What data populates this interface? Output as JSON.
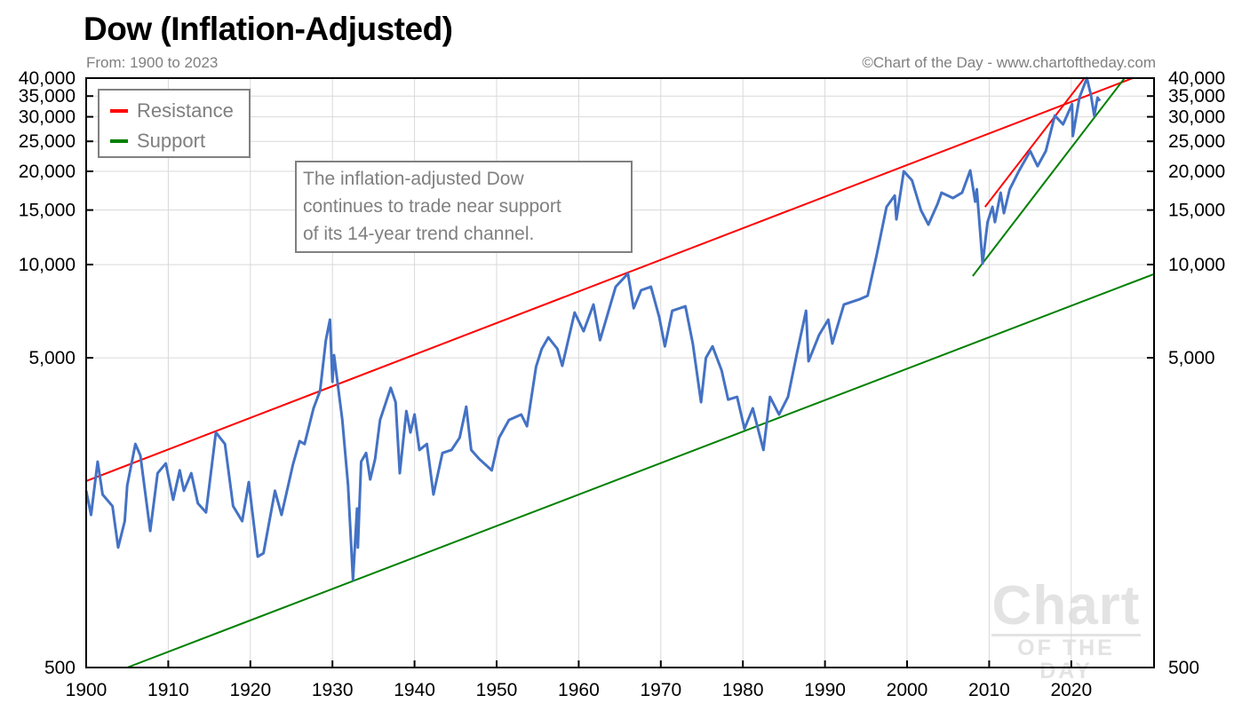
{
  "header": {
    "title": "Dow (Inflation-Adjusted)",
    "subtitle": "From: 1900 to 2023",
    "credit": "©Chart of the Day - www.chartoftheday.com"
  },
  "annotation": {
    "lines": [
      "The inflation-adjusted Dow",
      "continues to trade near support",
      "of its 14-year trend channel."
    ]
  },
  "watermark": {
    "line1": "Chart",
    "line2": "OF THE DAY"
  },
  "colors": {
    "series": "#4472c4",
    "resistance": "#ff0000",
    "support": "#008000",
    "grid": "#d9d9d9",
    "text_muted": "#7f7f7f"
  },
  "chart_data": {
    "type": "line",
    "title": "Dow (Inflation-Adjusted)",
    "subtitle": "From: 1900 to 2023",
    "xlabel": "",
    "ylabel": "",
    "xlim": [
      1900,
      2030
    ],
    "ylim": [
      500,
      40000
    ],
    "y_scale": "log",
    "grid": true,
    "legend_position": "top-left",
    "x_ticks": [
      1900,
      1910,
      1920,
      1930,
      1940,
      1950,
      1960,
      1970,
      1980,
      1990,
      2000,
      2010,
      2020
    ],
    "y_ticks": [
      500,
      5000,
      10000,
      15000,
      20000,
      25000,
      30000,
      35000,
      40000
    ],
    "y_tick_labels": [
      "500",
      "5,000",
      "10,000",
      "15,000",
      "20,000",
      "25,000",
      "30,000",
      "35,000",
      "40,000"
    ],
    "legend": [
      {
        "name": "Resistance",
        "color": "#ff0000"
      },
      {
        "name": "Support",
        "color": "#008000"
      }
    ],
    "series": [
      {
        "color": "#4472c4",
        "points": [
          [
            1900.0,
            1860
          ],
          [
            1900.6,
            1555
          ],
          [
            1901.4,
            2310
          ],
          [
            1902.0,
            1810
          ],
          [
            1903.2,
            1660
          ],
          [
            1903.9,
            1220
          ],
          [
            1904.7,
            1485
          ],
          [
            1905.0,
            1935
          ],
          [
            1906.0,
            2635
          ],
          [
            1906.6,
            2420
          ],
          [
            1907.8,
            1380
          ],
          [
            1908.7,
            2120
          ],
          [
            1909.7,
            2280
          ],
          [
            1910.6,
            1740
          ],
          [
            1911.4,
            2165
          ],
          [
            1911.9,
            1860
          ],
          [
            1912.8,
            2120
          ],
          [
            1913.6,
            1695
          ],
          [
            1914.6,
            1585
          ],
          [
            1915.8,
            2870
          ],
          [
            1916.9,
            2635
          ],
          [
            1917.9,
            1660
          ],
          [
            1919.0,
            1485
          ],
          [
            1919.8,
            1985
          ],
          [
            1920.9,
            1140
          ],
          [
            1921.6,
            1170
          ],
          [
            1923.0,
            1860
          ],
          [
            1923.8,
            1555
          ],
          [
            1925.2,
            2265
          ],
          [
            1926.0,
            2690
          ],
          [
            1926.6,
            2635
          ],
          [
            1927.7,
            3435
          ],
          [
            1928.5,
            3915
          ],
          [
            1929.2,
            5700
          ],
          [
            1929.7,
            6640
          ],
          [
            1930.0,
            4185
          ],
          [
            1930.2,
            5100
          ],
          [
            1931.2,
            3150
          ],
          [
            1931.9,
            1935
          ],
          [
            1932.5,
            960
          ],
          [
            1933.0,
            1630
          ],
          [
            1933.1,
            1220
          ],
          [
            1933.5,
            2310
          ],
          [
            1934.1,
            2465
          ],
          [
            1934.6,
            2025
          ],
          [
            1935.2,
            2355
          ],
          [
            1935.8,
            3150
          ],
          [
            1937.1,
            4000
          ],
          [
            1937.7,
            3595
          ],
          [
            1938.2,
            2120
          ],
          [
            1939.0,
            3365
          ],
          [
            1939.5,
            2870
          ],
          [
            1940.0,
            3280
          ],
          [
            1940.6,
            2520
          ],
          [
            1941.5,
            2635
          ],
          [
            1942.3,
            1810
          ],
          [
            1943.4,
            2465
          ],
          [
            1944.5,
            2520
          ],
          [
            1945.5,
            2760
          ],
          [
            1946.3,
            3475
          ],
          [
            1946.9,
            2520
          ],
          [
            1947.9,
            2355
          ],
          [
            1949.4,
            2165
          ],
          [
            1950.3,
            2760
          ],
          [
            1951.5,
            3150
          ],
          [
            1953.0,
            3280
          ],
          [
            1953.7,
            3005
          ],
          [
            1954.8,
            4680
          ],
          [
            1955.5,
            5345
          ],
          [
            1956.3,
            5820
          ],
          [
            1957.4,
            5345
          ],
          [
            1958.0,
            4710
          ],
          [
            1959.5,
            7000
          ],
          [
            1960.6,
            6095
          ],
          [
            1961.8,
            7430
          ],
          [
            1962.6,
            5700
          ],
          [
            1964.5,
            8475
          ],
          [
            1966.0,
            9355
          ],
          [
            1966.7,
            7230
          ],
          [
            1967.6,
            8260
          ],
          [
            1968.8,
            8475
          ],
          [
            1969.8,
            6775
          ],
          [
            1970.5,
            5445
          ],
          [
            1971.4,
            7095
          ],
          [
            1973.0,
            7330
          ],
          [
            1973.9,
            5560
          ],
          [
            1974.9,
            3595
          ],
          [
            1975.5,
            5000
          ],
          [
            1976.3,
            5445
          ],
          [
            1977.4,
            4560
          ],
          [
            1978.2,
            3665
          ],
          [
            1979.3,
            3740
          ],
          [
            1980.2,
            2950
          ],
          [
            1981.2,
            3435
          ],
          [
            1982.5,
            2520
          ],
          [
            1983.3,
            3740
          ],
          [
            1984.4,
            3280
          ],
          [
            1985.5,
            3740
          ],
          [
            1986.6,
            5200
          ],
          [
            1987.7,
            7095
          ],
          [
            1988.0,
            4875
          ],
          [
            1989.3,
            5935
          ],
          [
            1990.4,
            6640
          ],
          [
            1990.9,
            5560
          ],
          [
            1992.3,
            7430
          ],
          [
            1994.2,
            7725
          ],
          [
            1995.2,
            7935
          ],
          [
            1996.3,
            10740
          ],
          [
            1997.5,
            15350
          ],
          [
            1998.5,
            16710
          ],
          [
            1998.7,
            14000
          ],
          [
            1999.6,
            20000
          ],
          [
            2000.6,
            18710
          ],
          [
            2001.7,
            14960
          ],
          [
            2002.6,
            13460
          ],
          [
            2003.7,
            15670
          ],
          [
            2004.2,
            17060
          ],
          [
            2005.6,
            16400
          ],
          [
            2006.7,
            17060
          ],
          [
            2007.7,
            20130
          ],
          [
            2008.3,
            15960
          ],
          [
            2008.5,
            17500
          ],
          [
            2008.9,
            12850
          ],
          [
            2009.2,
            10070
          ],
          [
            2009.8,
            13710
          ],
          [
            2010.4,
            15350
          ],
          [
            2010.7,
            13710
          ],
          [
            2011.4,
            17060
          ],
          [
            2011.8,
            14650
          ],
          [
            2012.5,
            17500
          ],
          [
            2013.6,
            20000
          ],
          [
            2015.0,
            23270
          ],
          [
            2015.9,
            20790
          ],
          [
            2016.9,
            23270
          ],
          [
            2018.0,
            30270
          ],
          [
            2019.0,
            28370
          ],
          [
            2020.1,
            32970
          ],
          [
            2020.2,
            26000
          ],
          [
            2021.0,
            34590
          ],
          [
            2021.9,
            40000
          ],
          [
            2022.4,
            35240
          ],
          [
            2022.8,
            30270
          ],
          [
            2023.2,
            34590
          ],
          [
            2023.5,
            33780
          ]
        ]
      }
    ],
    "trend_lines": [
      {
        "name": "Resistance",
        "color": "#ff0000",
        "points": [
          [
            1900,
            2000
          ],
          [
            2027.5,
            40000
          ]
        ]
      },
      {
        "name": "Resistance",
        "color": "#ff0000",
        "points": [
          [
            2009.5,
            15350
          ],
          [
            2021.6,
            40000
          ]
        ]
      },
      {
        "name": "Support",
        "color": "#008000",
        "points": [
          [
            1905,
            500
          ],
          [
            2030,
            9300
          ]
        ]
      },
      {
        "name": "Support",
        "color": "#008000",
        "points": [
          [
            2008,
            9180
          ],
          [
            2026.5,
            40000
          ]
        ]
      }
    ]
  }
}
